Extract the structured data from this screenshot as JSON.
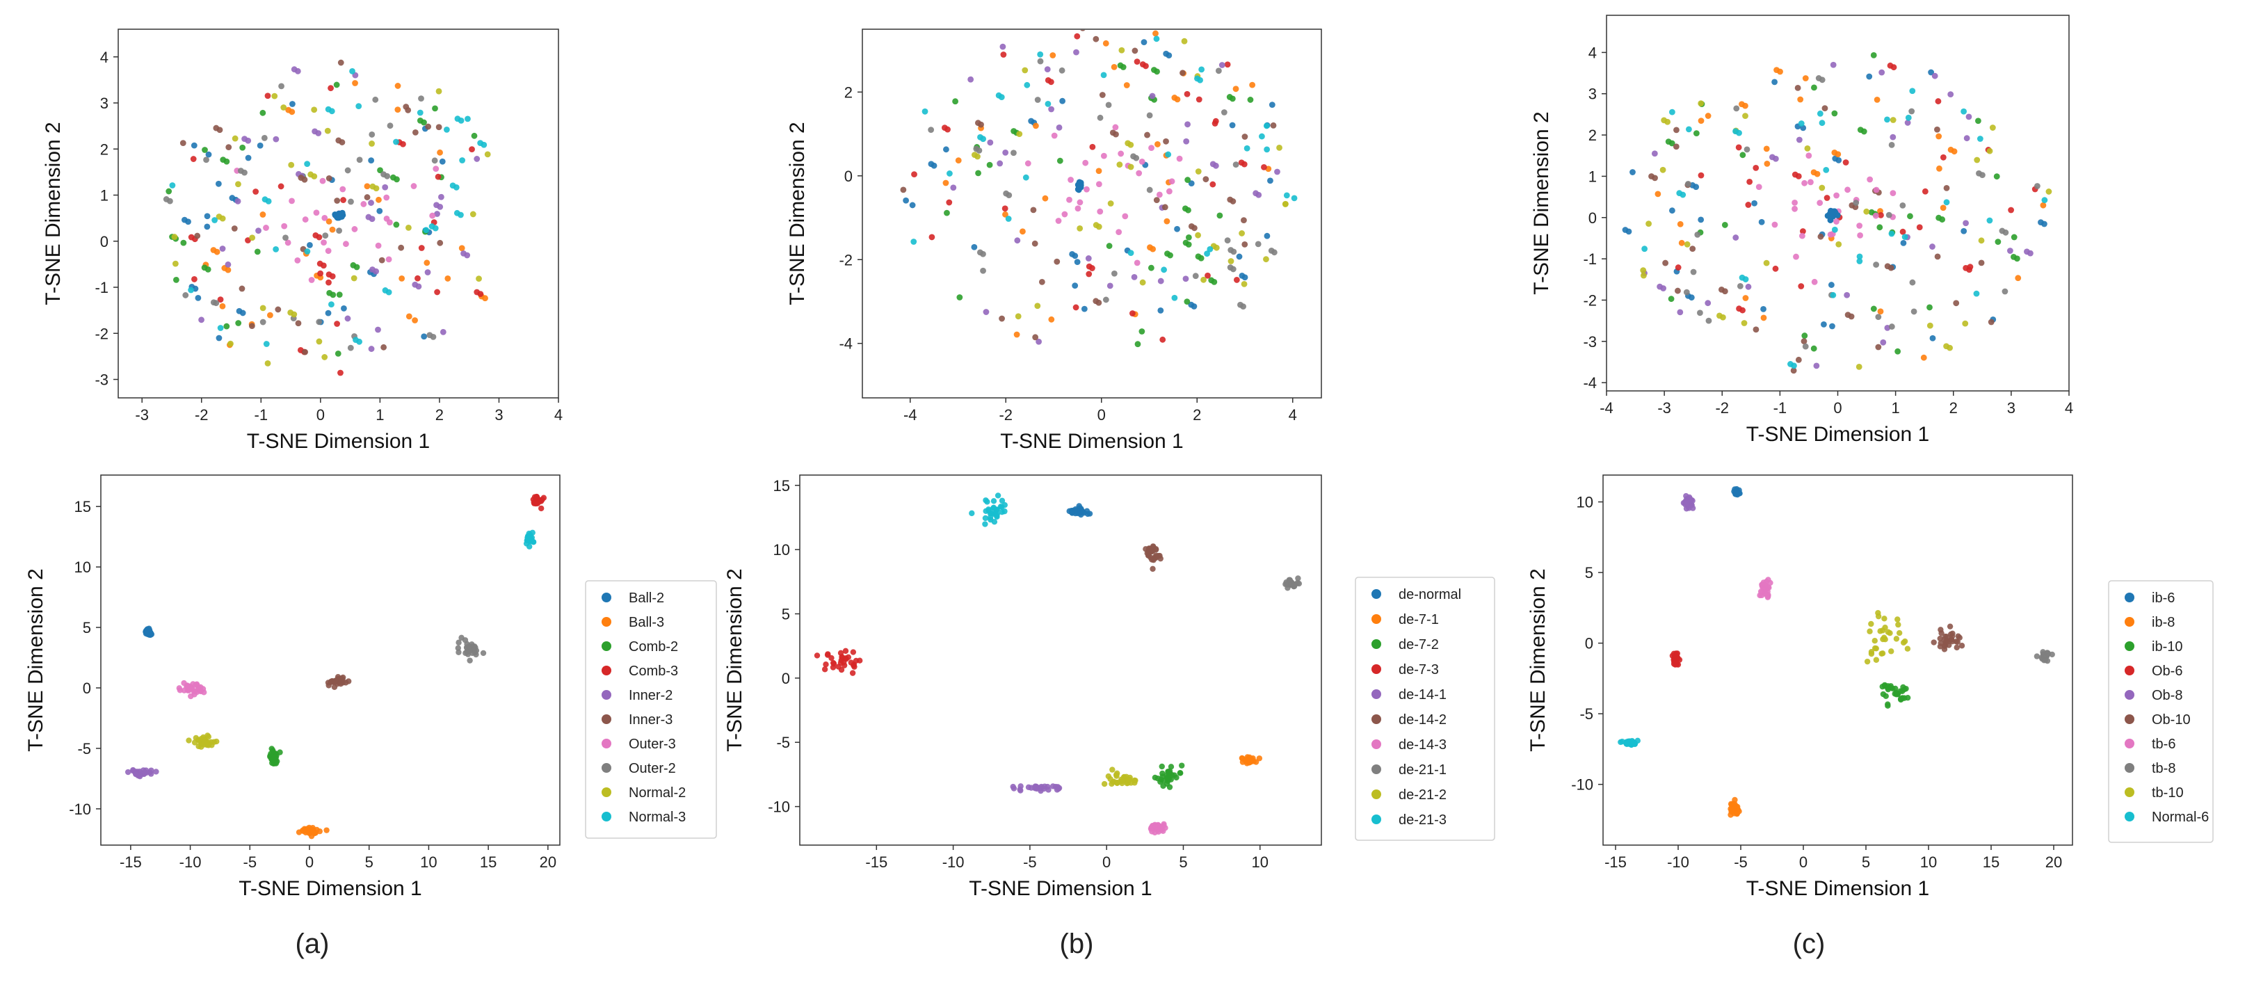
{
  "chart_data": [
    {
      "panel": "a-top",
      "type": "scatter",
      "xlabel": "T-SNE Dimension 1",
      "ylabel": "T-SNE Dimension 2",
      "xlim": [
        -3.4,
        4.0
      ],
      "ylim": [
        -3.4,
        4.6
      ],
      "xticks": [
        -3,
        -2,
        -1,
        0,
        1,
        2,
        3,
        4
      ],
      "yticks": [
        -3,
        -2,
        -1,
        0,
        1,
        2,
        3,
        4
      ],
      "legend": null,
      "palette": [
        "#1f77b4",
        "#ff7f0e",
        "#2ca02c",
        "#d62728",
        "#9467bd",
        "#8c564b",
        "#e377c2",
        "#7f7f7f",
        "#bcbd22",
        "#17becf"
      ],
      "dispersion": {
        "center": [
          0.2,
          0.5
        ],
        "spread": [
          2.9,
          3.5
        ],
        "points_per_series": 26,
        "seed": 11,
        "pink_center_spread": 1.0
      },
      "cluster": {
        "series": 0,
        "at": [
          0.3,
          0.55
        ]
      }
    },
    {
      "panel": "b-top",
      "type": "scatter",
      "xlabel": "T-SNE Dimension 1",
      "ylabel": "T-SNE Dimension 2",
      "xlim": [
        -5.0,
        4.6
      ],
      "ylim": [
        -5.3,
        3.5
      ],
      "xticks": [
        -4,
        -2,
        0,
        2,
        4
      ],
      "yticks": [
        -4,
        -2,
        0,
        2
      ],
      "legend": null,
      "palette": [
        "#1f77b4",
        "#ff7f0e",
        "#2ca02c",
        "#d62728",
        "#9467bd",
        "#8c564b",
        "#e377c2",
        "#7f7f7f",
        "#bcbd22",
        "#17becf"
      ],
      "dispersion": {
        "center": [
          0.0,
          -0.3
        ],
        "spread": [
          4.2,
          3.9
        ],
        "points_per_series": 26,
        "seed": 23,
        "pink_center_spread": 1.2
      },
      "cluster": {
        "series": 0,
        "at": [
          -0.45,
          -0.25
        ]
      }
    },
    {
      "panel": "c-top",
      "type": "scatter",
      "xlabel": "T-SNE Dimension 1",
      "ylabel": "T-SNE Dimension 2",
      "xlim": [
        -4.0,
        4.0
      ],
      "ylim": [
        -4.2,
        4.9
      ],
      "xticks": [
        -4,
        -3,
        -2,
        -1,
        0,
        1,
        2,
        3,
        4
      ],
      "yticks": [
        -4,
        -3,
        -2,
        -1,
        0,
        1,
        2,
        3,
        4
      ],
      "legend": null,
      "palette": [
        "#1f77b4",
        "#ff7f0e",
        "#2ca02c",
        "#d62728",
        "#9467bd",
        "#8c564b",
        "#e377c2",
        "#7f7f7f",
        "#bcbd22",
        "#17becf"
      ],
      "dispersion": {
        "center": [
          0.0,
          0.1
        ],
        "spread": [
          3.7,
          3.9
        ],
        "points_per_series": 26,
        "seed": 37,
        "pink_center_spread": 1.0
      },
      "cluster": {
        "series": 0,
        "at": [
          -0.1,
          0.1
        ]
      }
    },
    {
      "panel": "a-bottom",
      "type": "scatter",
      "xlabel": "T-SNE Dimension 1",
      "ylabel": "T-SNE Dimension 2",
      "xlim": [
        -17.5,
        21
      ],
      "ylim": [
        -13,
        17.6
      ],
      "xticks": [
        -15,
        -10,
        -5,
        0,
        5,
        10,
        15,
        20
      ],
      "yticks": [
        -10,
        -5,
        0,
        5,
        10,
        15
      ],
      "legend": "right",
      "series": [
        {
          "name": "Ball-2",
          "color": "#1f77b4",
          "center": [
            -13.5,
            4.6
          ],
          "spread": [
            0.3,
            0.4
          ]
        },
        {
          "name": "Ball-3",
          "color": "#ff7f0e",
          "center": [
            0.0,
            -11.8
          ],
          "spread": [
            0.8,
            0.4
          ]
        },
        {
          "name": "Comb-2",
          "color": "#2ca02c",
          "center": [
            -3.0,
            -5.6
          ],
          "spread": [
            0.4,
            1.0
          ]
        },
        {
          "name": "Comb-3",
          "color": "#d62728",
          "center": [
            19.0,
            15.5
          ],
          "spread": [
            0.5,
            0.5
          ]
        },
        {
          "name": "Inner-2",
          "color": "#9467bd",
          "center": [
            -14.5,
            -7.0
          ],
          "spread": [
            1.2,
            0.3
          ]
        },
        {
          "name": "Inner-3",
          "color": "#8c564b",
          "center": [
            2.3,
            0.6
          ],
          "spread": [
            1.1,
            0.5
          ]
        },
        {
          "name": "Outer-3",
          "color": "#e377c2",
          "center": [
            -9.8,
            -0.1
          ],
          "spread": [
            1.0,
            0.6
          ]
        },
        {
          "name": "Outer-2",
          "color": "#7f7f7f",
          "center": [
            13.5,
            3.3
          ],
          "spread": [
            1.0,
            0.8
          ]
        },
        {
          "name": "Normal-2",
          "color": "#bcbd22",
          "center": [
            -8.8,
            -4.4
          ],
          "spread": [
            1.2,
            0.5
          ]
        },
        {
          "name": "Normal-3",
          "color": "#17becf",
          "center": [
            18.5,
            12.3
          ],
          "spread": [
            0.3,
            0.6
          ]
        }
      ]
    },
    {
      "panel": "b-bottom",
      "type": "scatter",
      "xlabel": "T-SNE Dimension 1",
      "ylabel": "T-SNE Dimension 2",
      "xlim": [
        -20,
        14
      ],
      "ylim": [
        -13,
        15.8
      ],
      "xticks": [
        -15,
        -10,
        -5,
        0,
        5,
        10
      ],
      "yticks": [
        -10,
        -5,
        0,
        5,
        10,
        15
      ],
      "legend": "right",
      "series": [
        {
          "name": "de-normal",
          "color": "#1f77b4",
          "center": [
            -1.8,
            13.0
          ],
          "spread": [
            0.5,
            0.3
          ]
        },
        {
          "name": "de-7-1",
          "color": "#ff7f0e",
          "center": [
            9.3,
            -6.4
          ],
          "spread": [
            0.6,
            0.4
          ]
        },
        {
          "name": "de-7-2",
          "color": "#2ca02c",
          "center": [
            4.0,
            -7.5
          ],
          "spread": [
            1.0,
            0.8
          ]
        },
        {
          "name": "de-7-3",
          "color": "#d62728",
          "center": [
            -17.0,
            1.2
          ],
          "spread": [
            1.3,
            0.9
          ]
        },
        {
          "name": "de-14-1",
          "color": "#9467bd",
          "center": [
            -4.5,
            -8.6
          ],
          "spread": [
            1.7,
            0.3
          ]
        },
        {
          "name": "de-14-2",
          "color": "#8c564b",
          "center": [
            3.0,
            9.7
          ],
          "spread": [
            0.6,
            1.0
          ]
        },
        {
          "name": "de-14-3",
          "color": "#e377c2",
          "center": [
            3.3,
            -11.6
          ],
          "spread": [
            0.5,
            0.4
          ]
        },
        {
          "name": "de-21-1",
          "color": "#7f7f7f",
          "center": [
            12.0,
            7.3
          ],
          "spread": [
            0.5,
            0.4
          ]
        },
        {
          "name": "de-21-2",
          "color": "#bcbd22",
          "center": [
            1.2,
            -7.9
          ],
          "spread": [
            1.3,
            0.6
          ]
        },
        {
          "name": "de-21-3",
          "color": "#17becf",
          "center": [
            -7.5,
            13.0
          ],
          "spread": [
            0.9,
            1.1
          ]
        }
      ]
    },
    {
      "panel": "c-bottom",
      "type": "scatter",
      "xlabel": "T-SNE Dimension 1",
      "ylabel": "T-SNE Dimension 2",
      "xlim": [
        -16,
        21.5
      ],
      "ylim": [
        -14.3,
        11.9
      ],
      "xticks": [
        -15,
        -10,
        -5,
        0,
        5,
        10,
        15,
        20
      ],
      "yticks": [
        -10,
        -5,
        0,
        5,
        10
      ],
      "legend": "right",
      "series": [
        {
          "name": "ib-6",
          "color": "#1f77b4",
          "center": [
            -5.3,
            10.7
          ],
          "spread": [
            0.3,
            0.25
          ]
        },
        {
          "name": "ib-8",
          "color": "#ff7f0e",
          "center": [
            -5.5,
            -11.7
          ],
          "spread": [
            0.4,
            0.6
          ]
        },
        {
          "name": "ib-10",
          "color": "#2ca02c",
          "center": [
            7.3,
            -3.4
          ],
          "spread": [
            1.2,
            0.8
          ]
        },
        {
          "name": "Ob-6",
          "color": "#d62728",
          "center": [
            -10.2,
            -1.1
          ],
          "spread": [
            0.3,
            0.5
          ]
        },
        {
          "name": "Ob-8",
          "color": "#9467bd",
          "center": [
            -9.2,
            9.9
          ],
          "spread": [
            0.5,
            0.6
          ]
        },
        {
          "name": "Ob-10",
          "color": "#8c564b",
          "center": [
            11.5,
            0.2
          ],
          "spread": [
            1.1,
            0.8
          ]
        },
        {
          "name": "tb-6",
          "color": "#e377c2",
          "center": [
            -3.0,
            3.9
          ],
          "spread": [
            0.5,
            0.8
          ]
        },
        {
          "name": "tb-8",
          "color": "#7f7f7f",
          "center": [
            19.3,
            -0.9
          ],
          "spread": [
            0.5,
            0.3
          ]
        },
        {
          "name": "tb-10",
          "color": "#bcbd22",
          "center": [
            6.5,
            0.5
          ],
          "spread": [
            2.0,
            2.0
          ]
        },
        {
          "name": "Normal-6",
          "color": "#17becf",
          "center": [
            -13.8,
            -7.0
          ],
          "spread": [
            0.6,
            0.2
          ]
        }
      ]
    }
  ],
  "captions": [
    "(a)",
    "(b)",
    "(c)"
  ]
}
